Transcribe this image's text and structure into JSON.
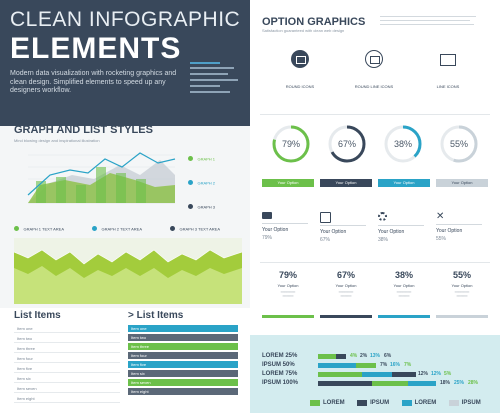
{
  "header": {
    "title_line1": "CLEAN INFOGRAPHIC",
    "title_line2": "ELEMENTS",
    "description": "Modern data visualization with rocketing graphics and clean design. Simplified elements to speed up any designers workflow."
  },
  "graph_section": {
    "title": "GRAPH AND LIST STYLES",
    "subtitle": "Mind blowing design and inspirational illustration",
    "legend": [
      "GRAPH 1",
      "GRAPH 2",
      "GRAPH 3"
    ],
    "feature_labels": [
      "GRAPH 1 TEXT AREA",
      "GRAPH 2 TEXT AREA",
      "GRAPH 3 TEXT AREA"
    ]
  },
  "list_section": {
    "left_title": "List Items",
    "right_title": "> List Items",
    "left_rows": [
      "Item one",
      "Item two",
      "Item three",
      "Item four",
      "Item five",
      "Item six",
      "Item seven",
      "Item eight"
    ],
    "right_rows": [
      "Item one",
      "Item two",
      "Item three",
      "Item four",
      "Item five",
      "Item six",
      "Item seven",
      "Item eight"
    ]
  },
  "options": {
    "title": "OPTION GRAPHICS",
    "subtitle": "Satisfaction guaranteed with clean web design",
    "icons": [
      {
        "label": "ROUND ICONS",
        "icon": "image-icon"
      },
      {
        "label": "ROUND LINE ICONS",
        "icon": "image-icon"
      },
      {
        "label": "LINE ICONS",
        "icon": "image-icon"
      }
    ],
    "donuts": [
      {
        "value": "79%",
        "pct": 79,
        "color": "#6cc04a"
      },
      {
        "value": "67%",
        "pct": 67,
        "color": "#39485b"
      },
      {
        "value": "38%",
        "pct": 38,
        "color": "#2aa3c7"
      },
      {
        "value": "55%",
        "pct": 55,
        "color": "#c9d2d9"
      }
    ],
    "buttons": [
      "Your Option",
      "Your Option",
      "Your Option",
      "Your Option"
    ],
    "icon_options": [
      {
        "title": "Your Option",
        "pct": "79%",
        "icon": "monitor-icon"
      },
      {
        "title": "Your Option",
        "pct": "67%",
        "icon": "pencil-icon"
      },
      {
        "title": "Your Option",
        "pct": "38%",
        "icon": "gear-icon"
      },
      {
        "title": "Your Option",
        "pct": "55%",
        "icon": "tools-icon"
      }
    ],
    "cards": [
      {
        "pct": "79%",
        "title": "Your Option",
        "color": "#6cc04a"
      },
      {
        "pct": "67%",
        "title": "Your Option",
        "color": "#39485b"
      },
      {
        "pct": "38%",
        "title": "Your Option",
        "color": "#2aa3c7"
      },
      {
        "pct": "55%",
        "title": "Your Option",
        "color": "#c9d2d9"
      }
    ]
  },
  "stats": {
    "rows": [
      {
        "label": "LOREM 25%",
        "nums": [
          "4%",
          "2%",
          "13%",
          "6%"
        ]
      },
      {
        "label": "IPSUM 50%",
        "nums": [
          "7%",
          "16%",
          "7%"
        ]
      },
      {
        "label": "LOREM 75%",
        "nums": [
          "12%",
          "12%",
          "5%"
        ]
      },
      {
        "label": "IPSUM 100%",
        "nums": [
          "18%",
          "25%",
          "28%"
        ]
      }
    ],
    "legend": [
      "LOREM",
      "IPSUM",
      "LOREM",
      "IPSUM"
    ]
  },
  "colors": {
    "navy": "#39485b",
    "green": "#6cc04a",
    "lime": "#a8d64c",
    "blue": "#2aa3c7",
    "grey": "#c9d2d9"
  }
}
